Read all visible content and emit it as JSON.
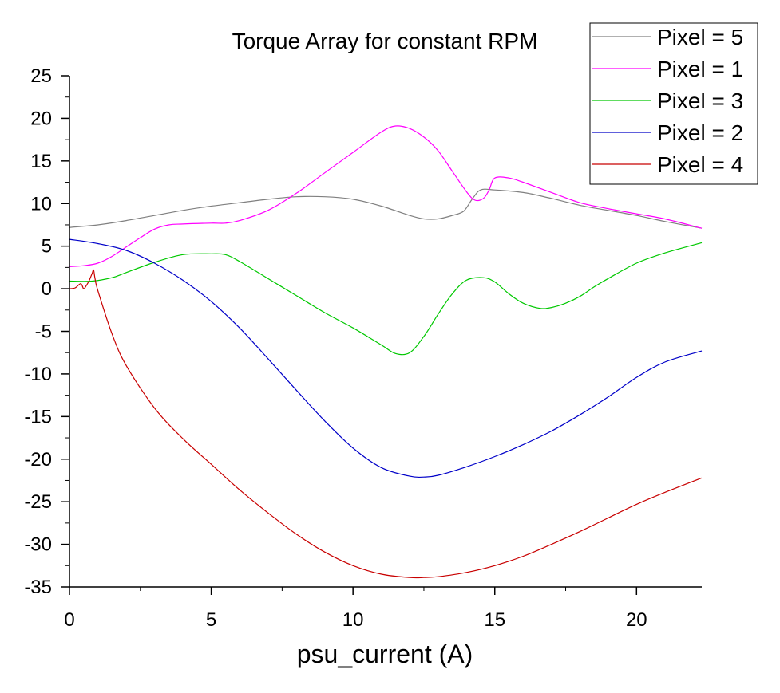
{
  "chart_data": {
    "type": "line",
    "title": "Torque Array for constant RPM",
    "xlabel": "psu_current (A)",
    "ylabel": "",
    "xlim": [
      0,
      22.3
    ],
    "ylim": [
      -35,
      25
    ],
    "xticks": [
      0,
      5,
      10,
      15,
      20
    ],
    "yticks": [
      25,
      20,
      15,
      10,
      5,
      0,
      -5,
      -10,
      -15,
      -20,
      -25,
      -30,
      -35
    ],
    "grid": false,
    "legend_position": "top-right",
    "series": [
      {
        "name": "Pixel = 5",
        "color": "#808080",
        "x": [
          0,
          1,
          2,
          3,
          4,
          5,
          6,
          7,
          8,
          9,
          10,
          11,
          12,
          12.5,
          13,
          13.5,
          13.9,
          14.2,
          14.5,
          15,
          16,
          17,
          18,
          19,
          20,
          21,
          22.3
        ],
        "y": [
          7.2,
          7.5,
          8.0,
          8.6,
          9.2,
          9.7,
          10.1,
          10.5,
          10.8,
          10.8,
          10.5,
          9.7,
          8.6,
          8.2,
          8.2,
          8.6,
          9.1,
          10.5,
          11.6,
          11.6,
          11.3,
          10.6,
          9.8,
          9.2,
          8.6,
          7.9,
          7.1
        ]
      },
      {
        "name": "Pixel = 1",
        "color": "#ff00ff",
        "x": [
          0,
          0.5,
          1,
          1.5,
          2,
          2.5,
          3,
          3.5,
          4,
          5,
          5.5,
          6,
          7,
          8,
          9,
          10,
          11,
          11.5,
          12,
          12.5,
          13,
          13.5,
          14,
          14.3,
          14.6,
          14.8,
          15,
          15.5,
          16,
          17,
          18,
          19,
          20,
          21,
          22.3
        ],
        "y": [
          2.6,
          2.7,
          3.0,
          3.8,
          4.9,
          6.0,
          7.0,
          7.5,
          7.6,
          7.7,
          7.7,
          8.0,
          9.2,
          11.2,
          13.6,
          16.0,
          18.4,
          19.1,
          18.8,
          17.8,
          16.2,
          13.8,
          11.4,
          10.4,
          10.6,
          11.6,
          13.0,
          13.0,
          12.5,
          11.3,
          10.1,
          9.4,
          8.8,
          8.2,
          7.1
        ]
      },
      {
        "name": "Pixel = 3",
        "color": "#00c800",
        "x": [
          0,
          0.8,
          1.5,
          2,
          3,
          4,
          5,
          5.5,
          6,
          7,
          8,
          9,
          10,
          11,
          11.5,
          12,
          12.5,
          13,
          13.5,
          14,
          14.6,
          15,
          15.5,
          16,
          16.6,
          17,
          17.5,
          18,
          18.5,
          19,
          20,
          21,
          22.3
        ],
        "y": [
          0.9,
          0.9,
          1.3,
          1.9,
          3.1,
          4.0,
          4.1,
          4.0,
          3.2,
          1.2,
          -0.8,
          -2.8,
          -4.6,
          -6.6,
          -7.6,
          -7.5,
          -5.6,
          -3.0,
          -0.6,
          1.0,
          1.3,
          0.8,
          -0.6,
          -1.7,
          -2.3,
          -2.2,
          -1.7,
          -0.9,
          0.2,
          1.2,
          3.0,
          4.2,
          5.4
        ]
      },
      {
        "name": "Pixel = 2",
        "color": "#0000c8",
        "x": [
          0,
          1,
          2,
          3,
          4,
          5,
          6,
          7,
          8,
          9,
          10,
          11,
          12,
          12.5,
          13,
          14,
          15,
          16,
          17,
          18,
          19,
          20,
          21,
          22.3
        ],
        "y": [
          5.8,
          5.3,
          4.5,
          3.0,
          1.0,
          -1.5,
          -4.6,
          -8.2,
          -11.9,
          -15.5,
          -18.7,
          -21.0,
          -22.0,
          -22.1,
          -21.9,
          -20.9,
          -19.7,
          -18.3,
          -16.7,
          -14.8,
          -12.7,
          -10.4,
          -8.6,
          -7.3
        ]
      },
      {
        "name": "Pixel = 4",
        "color": "#c80000",
        "x": [
          0,
          0.2,
          0.4,
          0.5,
          0.6,
          0.7,
          0.8,
          0.85,
          0.9,
          1.0,
          1.5,
          2,
          3,
          4,
          5,
          6,
          7,
          8,
          9,
          10,
          11,
          12,
          12.5,
          13,
          14,
          15,
          16,
          17,
          18,
          19,
          20,
          21,
          22.3
        ],
        "y": [
          0.0,
          0.1,
          0.6,
          0.0,
          0.4,
          1.0,
          1.8,
          2.2,
          1.2,
          -0.2,
          -5.3,
          -9.0,
          -14.0,
          -17.6,
          -20.6,
          -23.6,
          -26.3,
          -28.8,
          -30.9,
          -32.5,
          -33.5,
          -33.9,
          -33.9,
          -33.8,
          -33.3,
          -32.5,
          -31.4,
          -30.0,
          -28.5,
          -26.9,
          -25.3,
          -23.9,
          -22.2
        ]
      }
    ]
  }
}
